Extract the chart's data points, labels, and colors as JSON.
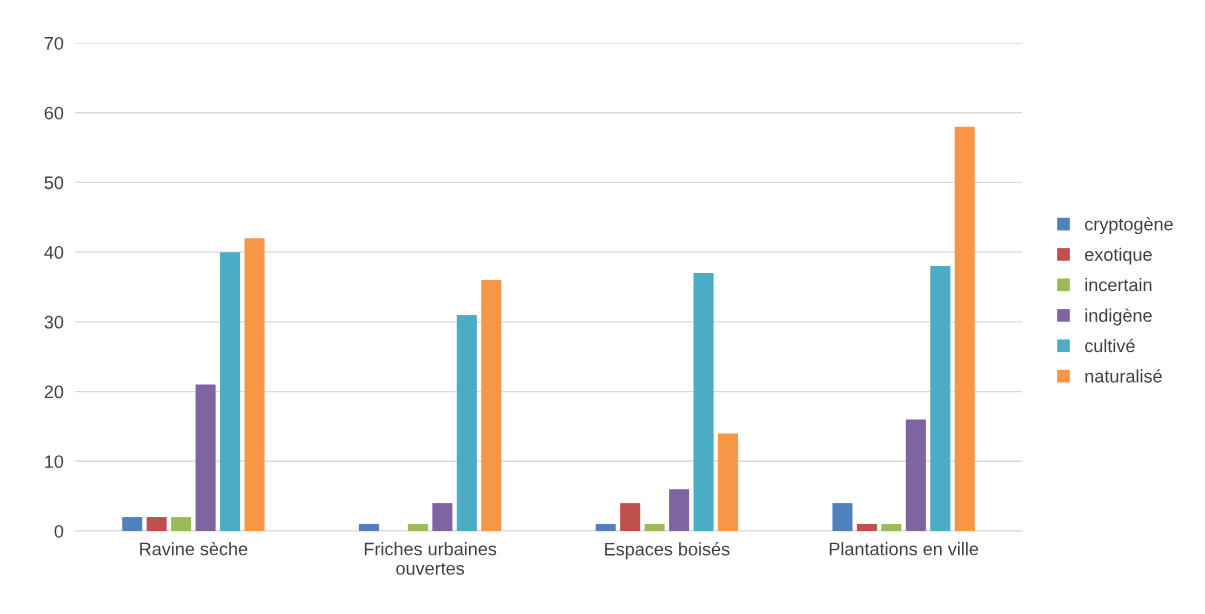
{
  "chart_data": {
    "type": "bar",
    "categories": [
      "Ravine sèche",
      "Friches urbaines\nouvertes",
      "Espaces boisés",
      "Plantations en ville"
    ],
    "series": [
      {
        "name": "cryptogène",
        "color": "#4f81bd",
        "values": [
          2,
          1,
          1,
          4
        ]
      },
      {
        "name": "exotique",
        "color": "#c0504d",
        "values": [
          2,
          0,
          4,
          1
        ]
      },
      {
        "name": "incertain",
        "color": "#9bbb59",
        "values": [
          2,
          1,
          1,
          1
        ]
      },
      {
        "name": "indigène",
        "color": "#8064a2",
        "values": [
          21,
          4,
          6,
          16
        ]
      },
      {
        "name": "cultivé",
        "color": "#4bacc6",
        "values": [
          40,
          31,
          37,
          38
        ]
      },
      {
        "name": "naturalisé",
        "color": "#f79646",
        "values": [
          42,
          36,
          14,
          58
        ]
      }
    ],
    "ylim": [
      0,
      70
    ],
    "yticks": [
      0,
      10,
      20,
      30,
      40,
      50,
      60,
      70
    ],
    "grid": "y",
    "legend": "right"
  }
}
